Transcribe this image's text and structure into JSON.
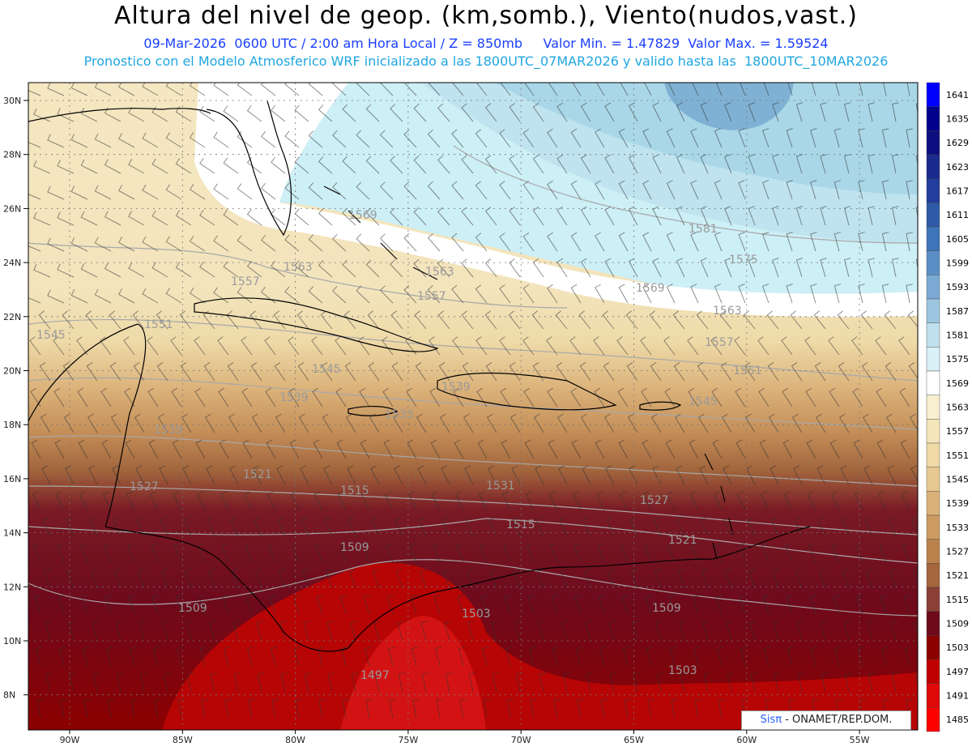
{
  "header": {
    "title": "Altura del nivel de geop. (km,somb.), Viento(nudos,vast.)",
    "line2": "09-Mar-2026  0600 UTC / 2:00 am Hora Local / Z = 850mb     Valor Min. = 1.47829  Valor Max. = 1.59524",
    "line3": "Pronostico con el Modelo Atmosferico WRF inicializado a las 1800UTC_07MAR2026 y valido hasta las  1800UTC_10MAR2026"
  },
  "map": {
    "region": "Caribbean / Gulf of Mexico / Western Atlantic",
    "lat_labels": [
      "30N",
      "28N",
      "26N",
      "24N",
      "22N",
      "20N",
      "18N",
      "16N",
      "14N",
      "12N",
      "10N",
      "8N"
    ],
    "lon_labels": [
      "90W",
      "85W",
      "80W",
      "75W",
      "70W",
      "65W",
      "60W",
      "55W"
    ],
    "contour_labels": [
      {
        "text": "1569"
      },
      {
        "text": "1563"
      },
      {
        "text": "1557"
      },
      {
        "text": "1551"
      },
      {
        "text": "1545"
      },
      {
        "text": "1539"
      },
      {
        "text": "1563"
      },
      {
        "text": "1557"
      },
      {
        "text": "1581"
      },
      {
        "text": "1575"
      },
      {
        "text": "1569"
      },
      {
        "text": "1563"
      },
      {
        "text": "1557"
      },
      {
        "text": "1551"
      },
      {
        "text": "1545"
      },
      {
        "text": "1539"
      },
      {
        "text": "1533"
      },
      {
        "text": "1527"
      },
      {
        "text": "1521"
      },
      {
        "text": "1515"
      },
      {
        "text": "1509"
      },
      {
        "text": "1515"
      },
      {
        "text": "1521"
      },
      {
        "text": "1527"
      },
      {
        "text": "1509"
      },
      {
        "text": "1509"
      },
      {
        "text": "1503"
      },
      {
        "text": "1497"
      },
      {
        "text": "1503"
      },
      {
        "text": "1545"
      },
      {
        "text": "1539"
      },
      {
        "text": "1531"
      }
    ]
  },
  "colorbar": {
    "levels": [
      "1641",
      "1635",
      "1629",
      "1623",
      "1617",
      "1611",
      "1605",
      "1599",
      "1593",
      "1587",
      "1581",
      "1575",
      "1569",
      "1563",
      "1557",
      "1551",
      "1545",
      "1539",
      "1533",
      "1527",
      "1521",
      "1515",
      "1509",
      "1503",
      "1497",
      "1491",
      "1485"
    ],
    "colors": [
      "#0000ff",
      "#00008c",
      "#0d0f80",
      "#1a2a8e",
      "#223d9e",
      "#2e5aa8",
      "#3e74b8",
      "#5a8fc6",
      "#7aaad4",
      "#9cc6e0",
      "#bfe0ee",
      "#d8f0f6",
      "#ffffff",
      "#f8efcf",
      "#f5e5bb",
      "#efd9a6",
      "#e6c890",
      "#dab279",
      "#cc9b62",
      "#bb824c",
      "#a5663b",
      "#8c3f36",
      "#6e0a1c",
      "#8c0000",
      "#c00000",
      "#e00a0a",
      "#ff0000"
    ]
  },
  "credit": {
    "logo_text": "Sisπ",
    "org": " - ONAMET/REP.DOM."
  }
}
